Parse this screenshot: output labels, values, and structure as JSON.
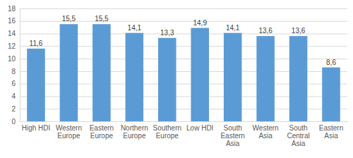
{
  "chart_data": {
    "type": "bar",
    "categories": [
      "High HDI",
      "Western Europe",
      "Eastern Europe",
      "Northern Europe",
      "Southern Europe",
      "Low HDI",
      "South Eastern Asia",
      "Western Asia",
      "South Central Asia",
      "Eastern Asia"
    ],
    "values": [
      11.6,
      15.5,
      15.5,
      14.1,
      13.3,
      14.9,
      14.1,
      13.6,
      13.6,
      8.6
    ],
    "value_labels": [
      "11,6",
      "15,5",
      "15,5",
      "14,1",
      "13,3",
      "14,9",
      "14,1",
      "13,6",
      "13,6",
      "8,6"
    ],
    "color": "#5b9bd5",
    "ylim": [
      0,
      18
    ],
    "yticks": [
      0,
      2,
      4,
      6,
      8,
      10,
      12,
      14,
      16,
      18
    ],
    "grid": true,
    "data_labels": true
  }
}
